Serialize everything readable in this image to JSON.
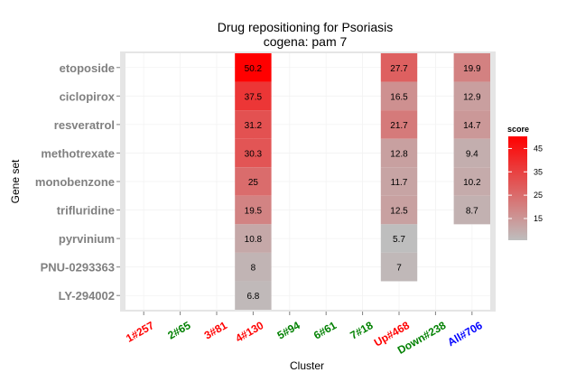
{
  "chart_data": {
    "type": "heatmap",
    "title": "Drug repositioning for Psoriasis",
    "subtitle": "cogena: pam 7",
    "xlabel": "Cluster",
    "ylabel": "Gene set",
    "x_categories": [
      {
        "label": "1#257",
        "color": "#ff0000"
      },
      {
        "label": "2#65",
        "color": "#008000"
      },
      {
        "label": "3#81",
        "color": "#ff0000"
      },
      {
        "label": "4#130",
        "color": "#ff0000"
      },
      {
        "label": "5#94",
        "color": "#008000"
      },
      {
        "label": "6#61",
        "color": "#008000"
      },
      {
        "label": "7#18",
        "color": "#008000"
      },
      {
        "label": "Up#468",
        "color": "#ff0000"
      },
      {
        "label": "Down#238",
        "color": "#008000"
      },
      {
        "label": "All#706",
        "color": "#0000ff"
      }
    ],
    "y_categories": [
      "etoposide",
      "ciclopirox",
      "resveratrol",
      "methotrexate",
      "monobenzone",
      "trifluridine",
      "pyrvinium",
      "PNU-0293363",
      "LY-294002"
    ],
    "cells": [
      {
        "x": "4#130",
        "y": "etoposide",
        "value": 50.2
      },
      {
        "x": "4#130",
        "y": "ciclopirox",
        "value": 37.5
      },
      {
        "x": "4#130",
        "y": "resveratrol",
        "value": 31.2
      },
      {
        "x": "4#130",
        "y": "methotrexate",
        "value": 30.3
      },
      {
        "x": "4#130",
        "y": "monobenzone",
        "value": 25
      },
      {
        "x": "4#130",
        "y": "trifluridine",
        "value": 19.5
      },
      {
        "x": "4#130",
        "y": "pyrvinium",
        "value": 10.8
      },
      {
        "x": "4#130",
        "y": "PNU-0293363",
        "value": 8
      },
      {
        "x": "4#130",
        "y": "LY-294002",
        "value": 6.8
      },
      {
        "x": "Up#468",
        "y": "etoposide",
        "value": 27.7
      },
      {
        "x": "Up#468",
        "y": "ciclopirox",
        "value": 16.5
      },
      {
        "x": "Up#468",
        "y": "resveratrol",
        "value": 21.7
      },
      {
        "x": "Up#468",
        "y": "methotrexate",
        "value": 12.8
      },
      {
        "x": "Up#468",
        "y": "monobenzone",
        "value": 11.7
      },
      {
        "x": "Up#468",
        "y": "trifluridine",
        "value": 12.5
      },
      {
        "x": "Up#468",
        "y": "pyrvinium",
        "value": 5.7
      },
      {
        "x": "Up#468",
        "y": "PNU-0293363",
        "value": 7
      },
      {
        "x": "All#706",
        "y": "etoposide",
        "value": 19.9
      },
      {
        "x": "All#706",
        "y": "ciclopirox",
        "value": 12.9
      },
      {
        "x": "All#706",
        "y": "resveratrol",
        "value": 14.7
      },
      {
        "x": "All#706",
        "y": "methotrexate",
        "value": 9.4
      },
      {
        "x": "All#706",
        "y": "monobenzone",
        "value": 10.2
      },
      {
        "x": "All#706",
        "y": "trifluridine",
        "value": 8.7
      }
    ],
    "legend": {
      "title": "score",
      "position": "right",
      "ticks": [
        15,
        25,
        35,
        45
      ],
      "range": [
        5.7,
        50.2
      ],
      "color_low": "#bebebe",
      "color_high": "#ff0000"
    },
    "panel_background": "#e5e5e5",
    "grid": true,
    "y_label_color": "#808080"
  }
}
